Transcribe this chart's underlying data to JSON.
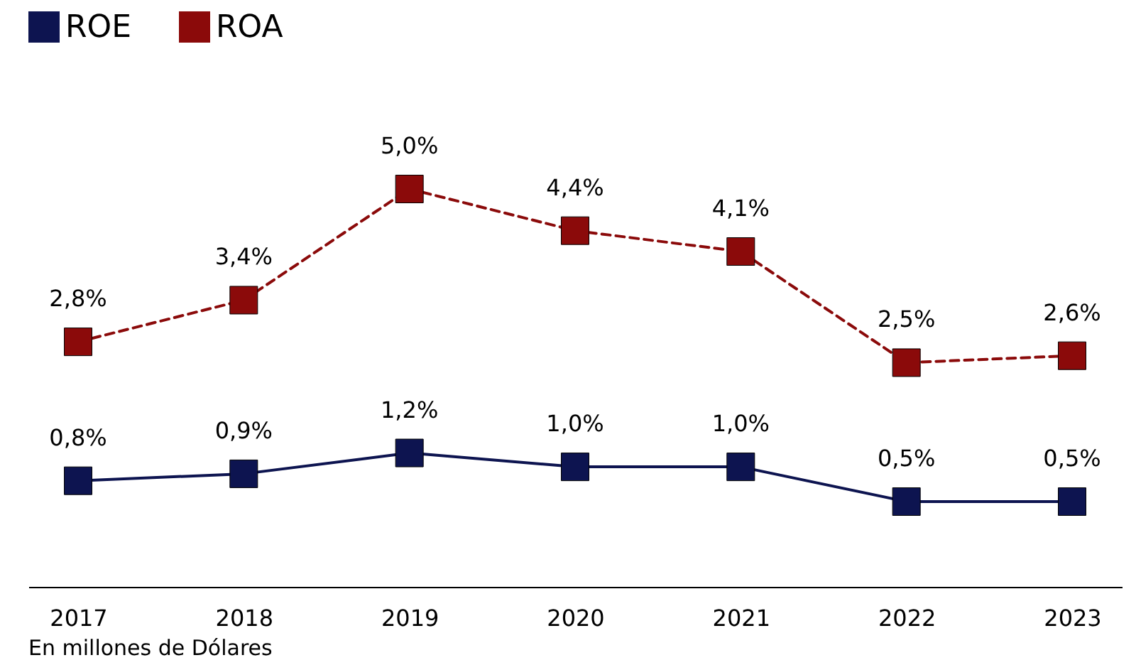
{
  "chart_data": {
    "type": "line",
    "categories": [
      "2017",
      "2018",
      "2019",
      "2020",
      "2021",
      "2022",
      "2023"
    ],
    "series": [
      {
        "name": "ROE",
        "color": "#0d1450",
        "line_style": "solid",
        "values": [
          0.8,
          0.9,
          1.2,
          1.0,
          1.0,
          0.5,
          0.5
        ],
        "value_labels": [
          "0,8%",
          "0,9%",
          "1,2%",
          "1,0%",
          "1,0%",
          "0,5%",
          "0,5%"
        ]
      },
      {
        "name": "ROA",
        "color": "#8b0a0a",
        "line_style": "dashed",
        "values": [
          2.8,
          3.4,
          5.0,
          4.4,
          4.1,
          2.5,
          2.6
        ],
        "value_labels": [
          "2,8%",
          "3,4%",
          "5,0%",
          "4,4%",
          "4,1%",
          "2,5%",
          "2,6%"
        ]
      }
    ],
    "tick_labels": "x",
    "grid": false,
    "legend": "top left",
    "marker": "square",
    "annotations": [
      "En millones de Dólares"
    ]
  }
}
